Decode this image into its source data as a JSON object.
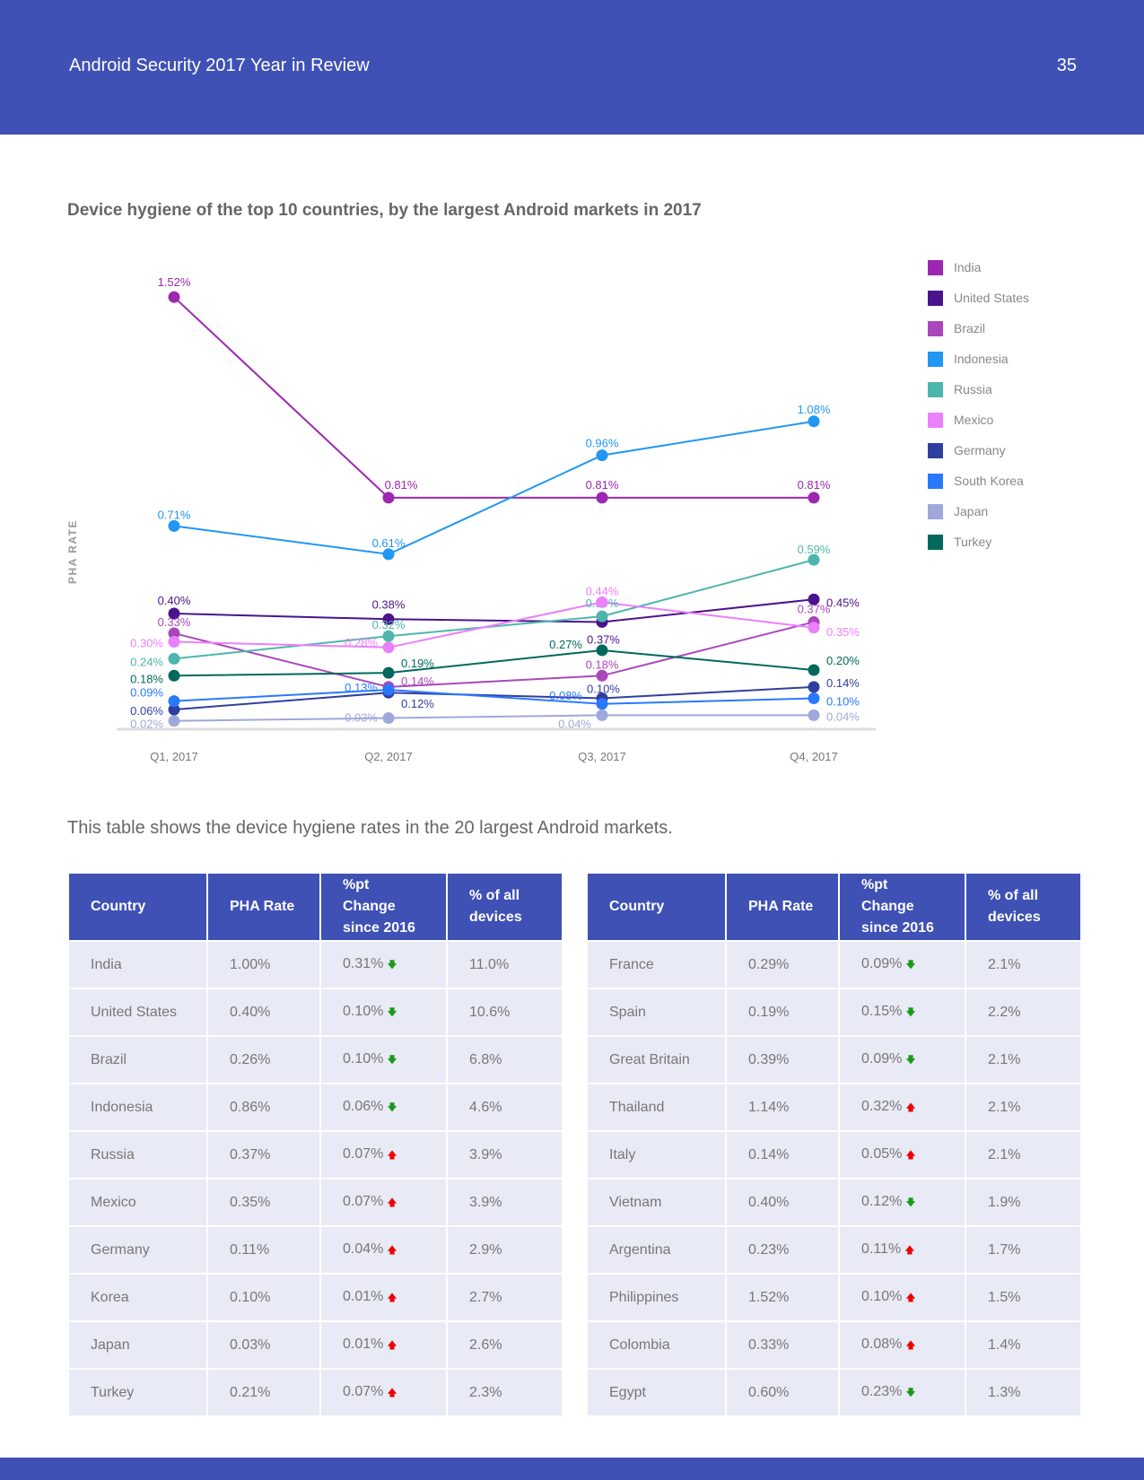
{
  "header": {
    "title": "Android Security 2017 Year in Review",
    "page": "35"
  },
  "chart_data": {
    "type": "line",
    "title": "Device hygiene of the top 10 countries, by the largest Android markets in 2017",
    "ylabel": "PHA RATE",
    "xlabel": "",
    "categories": [
      "Q1, 2017",
      "Q2, 2017",
      "Q3, 2017",
      "Q4, 2017"
    ],
    "ylim": [
      0,
      1.6
    ],
    "legend": "right",
    "series": [
      {
        "name": "India",
        "color": "#9C27B0",
        "values": [
          1.52,
          0.81,
          0.81,
          0.81
        ]
      },
      {
        "name": "United States",
        "color": "#4A148C",
        "values": [
          0.4,
          0.38,
          0.37,
          0.45
        ]
      },
      {
        "name": "Brazil",
        "color": "#AB47BC",
        "values": [
          0.33,
          0.14,
          0.18,
          0.37
        ]
      },
      {
        "name": "Indonesia",
        "color": "#2196F3",
        "values": [
          0.71,
          0.61,
          0.96,
          1.08
        ]
      },
      {
        "name": "Russia",
        "color": "#4DB6AC",
        "values": [
          0.24,
          0.32,
          0.39,
          0.59
        ]
      },
      {
        "name": "Mexico",
        "color": "#EA80FC",
        "values": [
          0.3,
          0.28,
          0.44,
          0.35
        ]
      },
      {
        "name": "Germany",
        "color": "#303F9F",
        "values": [
          0.06,
          0.12,
          0.1,
          0.14
        ]
      },
      {
        "name": "South Korea",
        "color": "#2979FF",
        "values": [
          0.09,
          0.13,
          0.08,
          0.1
        ]
      },
      {
        "name": "Japan",
        "color": "#9FA8DA",
        "values": [
          0.02,
          0.03,
          0.04,
          0.04
        ]
      },
      {
        "name": "Turkey",
        "color": "#00695C",
        "values": [
          0.18,
          0.19,
          0.27,
          0.2
        ]
      }
    ]
  },
  "intro": "This table shows the device hygiene rates in the 20 largest Android markets.",
  "table": {
    "headers": [
      "Country",
      "PHA Rate",
      "%pt Change since 2016",
      "% of all devices"
    ],
    "left": [
      [
        "India",
        "1.00%",
        "0.31%",
        "down",
        "11.0%"
      ],
      [
        "United States",
        "0.40%",
        "0.10%",
        "down",
        "10.6%"
      ],
      [
        "Brazil",
        "0.26%",
        "0.10%",
        "down",
        "6.8%"
      ],
      [
        "Indonesia",
        "0.86%",
        "0.06%",
        "down",
        "4.6%"
      ],
      [
        "Russia",
        "0.37%",
        "0.07%",
        "up",
        "3.9%"
      ],
      [
        "Mexico",
        "0.35%",
        "0.07%",
        "up",
        "3.9%"
      ],
      [
        "Germany",
        "0.11%",
        "0.04%",
        "up",
        "2.9%"
      ],
      [
        "Korea",
        "0.10%",
        "0.01%",
        "up",
        "2.7%"
      ],
      [
        "Japan",
        "0.03%",
        "0.01%",
        "up",
        "2.6%"
      ],
      [
        "Turkey",
        "0.21%",
        "0.07%",
        "up",
        "2.3%"
      ]
    ],
    "right": [
      [
        "France",
        "0.29%",
        "0.09%",
        "down",
        "2.1%"
      ],
      [
        "Spain",
        "0.19%",
        "0.15%",
        "down",
        "2.2%"
      ],
      [
        "Great Britain",
        "0.39%",
        "0.09%",
        "down",
        "2.1%"
      ],
      [
        "Thailand",
        "1.14%",
        "0.32%",
        "up",
        "2.1%"
      ],
      [
        "Italy",
        "0.14%",
        "0.05%",
        "up",
        "2.1%"
      ],
      [
        "Vietnam",
        "0.40%",
        "0.12%",
        "down",
        "1.9%"
      ],
      [
        "Argentina",
        "0.23%",
        "0.11%",
        "up",
        "1.7%"
      ],
      [
        "Philippines",
        "1.52%",
        "0.10%",
        "up",
        "1.5%"
      ],
      [
        "Colombia",
        "0.33%",
        "0.08%",
        "up",
        "1.4%"
      ],
      [
        "Egypt",
        "0.60%",
        "0.23%",
        "down",
        "1.3%"
      ]
    ]
  }
}
